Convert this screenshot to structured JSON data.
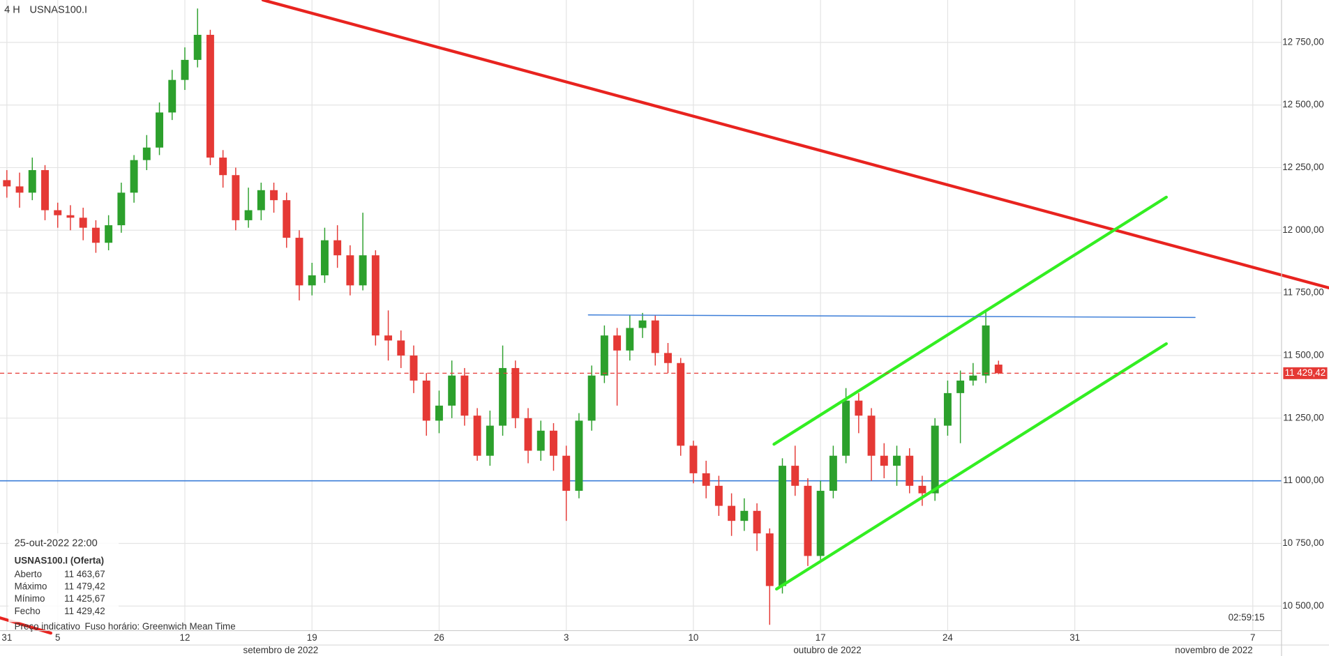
{
  "chart_data": {
    "type": "candlestick",
    "timeframe": "4 H",
    "symbol": "USNAS100.I",
    "up_color": "#2ca02c",
    "down_color": "#e53935",
    "grid": true,
    "xlim": [
      -0.27,
      50.13
    ],
    "ylim": [
      10402,
      12919
    ],
    "yticks": [
      {
        "value": 10500,
        "label": "10 500,00"
      },
      {
        "value": 10750,
        "label": "10 750,00"
      },
      {
        "value": 11000,
        "label": "11 000,00"
      },
      {
        "value": 11250,
        "label": "11 250,00"
      },
      {
        "value": 11500,
        "label": "11 500,00"
      },
      {
        "value": 11750,
        "label": "11 750,00"
      },
      {
        "value": 12000,
        "label": "12 000,00"
      },
      {
        "value": 12250,
        "label": "12 250,00"
      },
      {
        "value": 12500,
        "label": "12 500,00"
      },
      {
        "value": 12750,
        "label": "12 750,00"
      }
    ],
    "xticks": [
      {
        "value": 0,
        "label": "31"
      },
      {
        "value": 2,
        "label": "5"
      },
      {
        "value": 7,
        "label": "12"
      },
      {
        "value": 12,
        "label": "19"
      },
      {
        "value": 17,
        "label": "26"
      },
      {
        "value": 22,
        "label": "3"
      },
      {
        "value": 27,
        "label": "10"
      },
      {
        "value": 32,
        "label": "17"
      },
      {
        "value": 37,
        "label": "24"
      },
      {
        "value": 42,
        "label": "31"
      },
      {
        "value": 49,
        "label": "7"
      }
    ],
    "months": [
      {
        "value": 10.77,
        "label": "setembro de 2022"
      },
      {
        "value": 32.27,
        "label": "outubro de 2022"
      },
      {
        "value": 47.47,
        "label": "novembro de 2022"
      }
    ],
    "x": [
      0,
      0.5,
      1,
      1.5,
      2,
      2.5,
      3,
      3.5,
      4,
      4.5,
      5,
      5.5,
      6,
      6.5,
      7,
      7.5,
      8,
      8.5,
      9,
      9.5,
      10,
      10.5,
      11,
      11.5,
      12,
      12.5,
      13,
      13.5,
      14,
      14.5,
      15,
      15.5,
      16,
      16.5,
      17,
      17.5,
      18,
      18.5,
      19,
      19.5,
      20,
      20.5,
      21,
      21.5,
      22,
      22.5,
      23,
      23.5,
      24,
      24.5,
      25,
      25.5,
      26,
      26.5,
      27,
      27.5,
      28,
      28.5,
      29,
      29.5,
      30,
      30.5,
      31,
      31.5,
      32,
      32.5,
      33,
      33.5,
      34,
      34.5,
      35,
      35.5,
      36,
      36.5,
      37,
      37.5,
      38,
      38.5,
      39
    ],
    "open": [
      12200,
      12175,
      12150,
      12240,
      12080,
      12060,
      12050,
      12010,
      11950,
      12020,
      12150,
      12280,
      12330,
      12470,
      12600,
      12680,
      12780,
      12290,
      12220,
      12040,
      12080,
      12160,
      12120,
      11970,
      11780,
      11820,
      11960,
      11900,
      11780,
      11900,
      11580,
      11560,
      11500,
      11400,
      11240,
      11300,
      11420,
      11260,
      11100,
      11220,
      11450,
      11250,
      11120,
      11200,
      11100,
      10960,
      11240,
      11420,
      11580,
      11520,
      11610,
      11640,
      11510,
      11470,
      11140,
      11030,
      10980,
      10900,
      10840,
      10880,
      10790,
      10580,
      11060,
      10980,
      10700,
      10960,
      11100,
      11320,
      11260,
      11100,
      11060,
      11100,
      10980,
      10950,
      11220,
      11350,
      11400,
      11420,
      11463.67
    ],
    "high": [
      12240,
      12230,
      12290,
      12260,
      12110,
      12100,
      12090,
      12040,
      12060,
      12190,
      12300,
      12380,
      12510,
      12640,
      12730,
      12885,
      12800,
      12320,
      12250,
      12170,
      12190,
      12190,
      12150,
      12000,
      11870,
      12010,
      12020,
      11940,
      12070,
      11920,
      11680,
      11600,
      11540,
      11430,
      11360,
      11480,
      11450,
      11290,
      11280,
      11540,
      11480,
      11290,
      11240,
      11230,
      11140,
      11270,
      11460,
      11620,
      11610,
      11660,
      11670,
      11660,
      11550,
      11490,
      11160,
      11080,
      11020,
      10950,
      10930,
      10910,
      10810,
      11090,
      11140,
      11010,
      11000,
      11140,
      11370,
      11350,
      11290,
      11150,
      11140,
      11130,
      11020,
      11250,
      11400,
      11440,
      11470,
      11680,
      11479.42
    ],
    "low": [
      12130,
      12090,
      12120,
      12040,
      12010,
      12000,
      11960,
      11910,
      11920,
      11990,
      12110,
      12240,
      12300,
      12440,
      12560,
      12650,
      12260,
      12170,
      12000,
      12010,
      12040,
      12070,
      11930,
      11720,
      11740,
      11790,
      11850,
      11740,
      11760,
      11540,
      11480,
      11450,
      11350,
      11180,
      11190,
      11250,
      11220,
      11080,
      11060,
      11180,
      11210,
      11070,
      11080,
      11040,
      10840,
      10930,
      11200,
      11390,
      11300,
      11480,
      11570,
      11460,
      11430,
      11100,
      10990,
      10930,
      10860,
      10780,
      10800,
      10720,
      10425,
      10550,
      10940,
      10660,
      10680,
      10930,
      11070,
      11190,
      11000,
      11010,
      10980,
      10950,
      10900,
      10920,
      11180,
      11150,
      11380,
      11390,
      11425.67
    ],
    "close": [
      12175,
      12150,
      12240,
      12080,
      12060,
      12050,
      12010,
      11950,
      12020,
      12150,
      12280,
      12330,
      12470,
      12600,
      12680,
      12780,
      12290,
      12220,
      12040,
      12080,
      12160,
      12120,
      11970,
      11780,
      11820,
      11960,
      11900,
      11780,
      11900,
      11580,
      11560,
      11500,
      11400,
      11240,
      11300,
      11420,
      11260,
      11100,
      11220,
      11450,
      11250,
      11120,
      11200,
      11100,
      10960,
      11240,
      11420,
      11580,
      11520,
      11610,
      11640,
      11510,
      11470,
      11140,
      11030,
      10980,
      10900,
      10840,
      10880,
      10790,
      10580,
      11060,
      10980,
      10700,
      10960,
      11100,
      11320,
      11260,
      11100,
      11060,
      11100,
      10980,
      10950,
      11220,
      11350,
      11400,
      11420,
      11620,
      11429.42
    ],
    "price_line": {
      "value": 11429.42,
      "label": "11 429,42",
      "color": "#e53935"
    },
    "hlines": [
      {
        "value": 11000,
        "color": "#3b7dd8"
      }
    ],
    "trendlines": [
      {
        "x": [
          10.07,
          52
        ],
        "y": [
          12919,
          11770
        ],
        "color": "#e8231f"
      },
      {
        "x": [
          -0.27,
          1.73
        ],
        "y": [
          10453,
          10392
        ],
        "color": "#e8231f"
      },
      {
        "x": [
          30.17,
          45.6
        ],
        "y": [
          11146,
          12132
        ],
        "color": "#33ee22"
      },
      {
        "x": [
          30.27,
          45.6
        ],
        "y": [
          10568,
          11547
        ],
        "color": "#33ee22"
      },
      {
        "x": [
          22.87,
          46.73
        ],
        "y": [
          11662,
          11652
        ],
        "color": "#3b7dd8"
      }
    ],
    "info_panel": {
      "datetime": "25-out-2022 22:00",
      "instrument": "USNAS100.I (Oferta)",
      "rows": [
        [
          "Aberto",
          "11 463,67"
        ],
        [
          "Máximo",
          "11 479,42"
        ],
        [
          "Mínimo",
          "11 425,67"
        ],
        [
          "Fecho",
          "11 429,42"
        ]
      ]
    },
    "footer_note": "Preço indicativo",
    "timezone": "Fuso horário: Greenwich Mean Time",
    "countdown": "02:59:15"
  }
}
